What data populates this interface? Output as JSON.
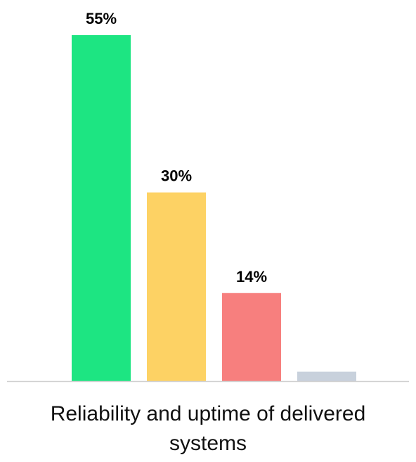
{
  "chart_data": {
    "type": "bar",
    "categories": [
      "Reliability and uptime of delivered systems"
    ],
    "series": [
      {
        "values": [
          55
        ],
        "color": "#1de582",
        "label": "55%"
      },
      {
        "values": [
          30
        ],
        "color": "#fdd264",
        "label": "30%"
      },
      {
        "values": [
          14
        ],
        "color": "#f77f7e",
        "label": "14%"
      },
      {
        "values": [
          1.5
        ],
        "color": "#c8d1dc",
        "label": ""
      }
    ],
    "ylim": [
      0,
      55
    ],
    "grid": false,
    "legend": "none",
    "baseline_color": "#d0d0d0"
  }
}
